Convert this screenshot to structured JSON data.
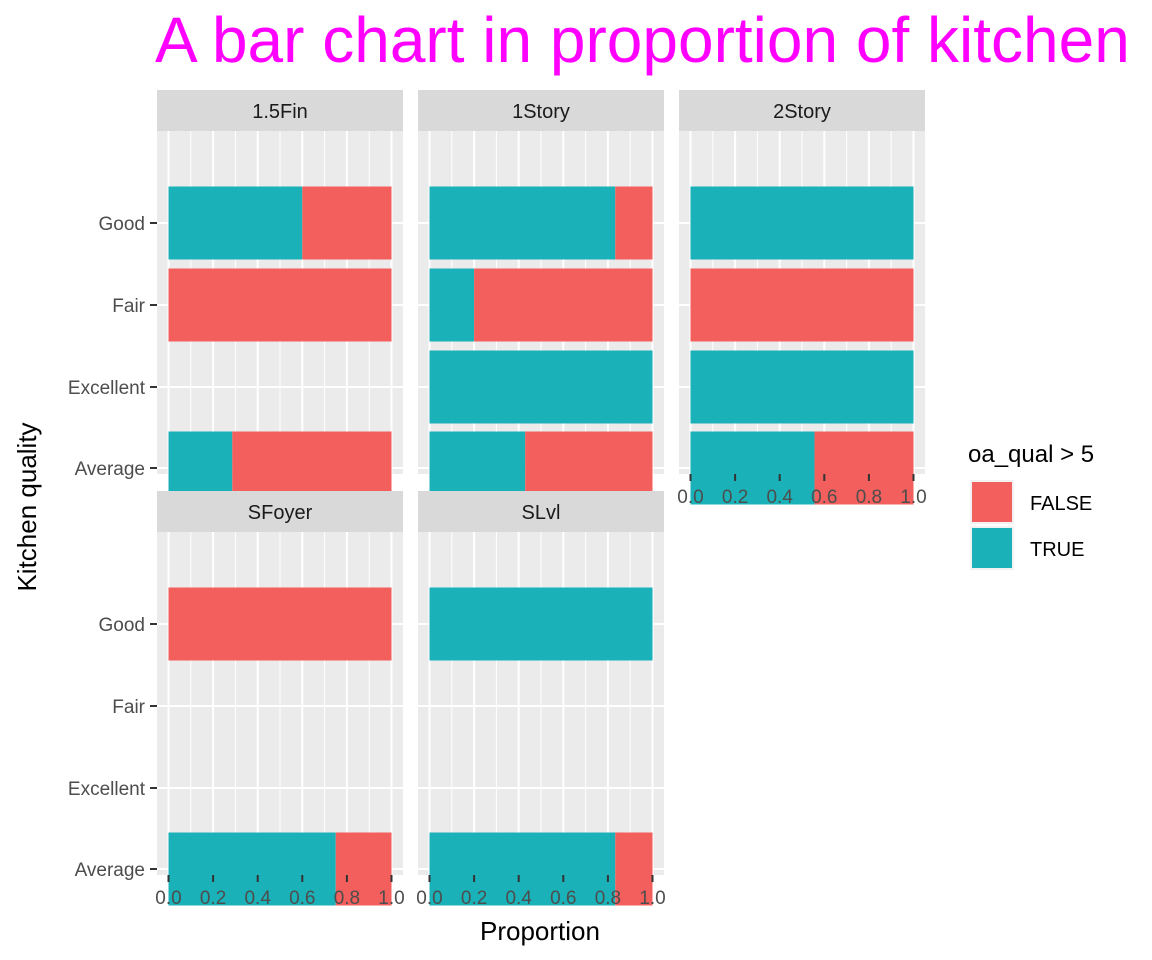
{
  "chart_data": {
    "type": "bar",
    "orientation": "horizontal",
    "stacked": true,
    "title": "A bar chart in proportion of kitchen",
    "title_color": "#ff00ff",
    "xlabel": "Proportion",
    "ylabel": "Kitchen quality",
    "xlim": [
      0,
      1
    ],
    "x_ticks": [
      "0.0",
      "0.2",
      "0.4",
      "0.6",
      "0.8",
      "1.0"
    ],
    "categories": [
      "Good",
      "Fair",
      "Excellent",
      "Average"
    ],
    "grid": true,
    "legend": {
      "title": "oa_qual > 5",
      "position": "right",
      "items": [
        {
          "label": "FALSE",
          "color": "#f8766d"
        },
        {
          "label": "TRUE",
          "color": "#00bfc4"
        }
      ]
    },
    "colors": {
      "TRUE": "#1ab2b8",
      "FALSE": "#f25f5c",
      "panel": "#ebebeb",
      "strip": "#d9d9d9"
    },
    "panels": [
      {
        "name": "1.5Fin",
        "values": [
          {
            "category": "Good",
            "TRUE": 0.6,
            "FALSE": 0.4
          },
          {
            "category": "Fair",
            "TRUE": 0.0,
            "FALSE": 1.0
          },
          {
            "category": "Average",
            "TRUE": 0.286,
            "FALSE": 0.714
          }
        ]
      },
      {
        "name": "1Story",
        "values": [
          {
            "category": "Good",
            "TRUE": 0.833,
            "FALSE": 0.167
          },
          {
            "category": "Fair",
            "TRUE": 0.2,
            "FALSE": 0.8
          },
          {
            "category": "Excellent",
            "TRUE": 1.0,
            "FALSE": 0.0
          },
          {
            "category": "Average",
            "TRUE": 0.429,
            "FALSE": 0.571
          }
        ]
      },
      {
        "name": "2Story",
        "values": [
          {
            "category": "Good",
            "TRUE": 1.0,
            "FALSE": 0.0
          },
          {
            "category": "Fair",
            "TRUE": 0.0,
            "FALSE": 1.0
          },
          {
            "category": "Excellent",
            "TRUE": 1.0,
            "FALSE": 0.0
          },
          {
            "category": "Average",
            "TRUE": 0.556,
            "FALSE": 0.444
          }
        ]
      },
      {
        "name": "SFoyer",
        "values": [
          {
            "category": "Good",
            "TRUE": 0.0,
            "FALSE": 1.0
          },
          {
            "category": "Average",
            "TRUE": 0.75,
            "FALSE": 0.25
          }
        ]
      },
      {
        "name": "SLvl",
        "values": [
          {
            "category": "Good",
            "TRUE": 1.0,
            "FALSE": 0.0
          },
          {
            "category": "Average",
            "TRUE": 0.833,
            "FALSE": 0.167
          }
        ]
      }
    ]
  }
}
